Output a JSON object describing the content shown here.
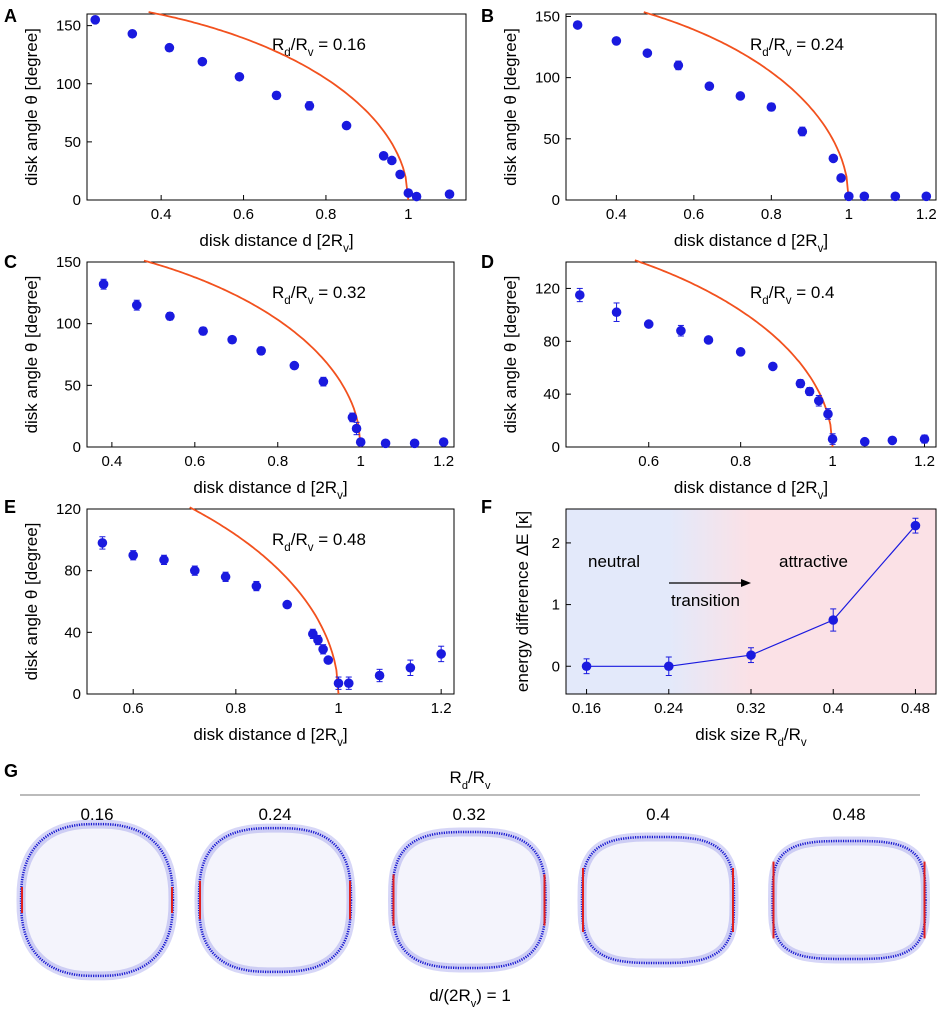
{
  "colors": {
    "marker": "#1a1adf",
    "fit": "#f2511e",
    "membrane": "#1a1ad0",
    "disk": "#e02020",
    "region_neutral": "#e3e9fa",
    "region_attractive": "#fbe1e6"
  },
  "panel_labels": {
    "A": "A",
    "B": "B",
    "C": "C",
    "D": "D",
    "E": "E",
    "F": "F",
    "G": "G"
  },
  "axis_labels": {
    "theta_y": "disk angle θ [degree]",
    "d_x": "disk distance d [2Rv]",
    "f_y": "energy difference ΔE [κ]",
    "f_x": "disk size Rd/Rv"
  },
  "chart_data": [
    {
      "id": "A",
      "type": "scatter",
      "annotation": "Rd/Rv = 0.16",
      "xlabel": "disk distance d [2Rv]",
      "ylabel": "disk angle θ [degree]",
      "xlim": [
        0.22,
        1.14
      ],
      "ylim": [
        0,
        160
      ],
      "xticks": [
        "0.4",
        "0.6",
        "0.8",
        "1"
      ],
      "yticks": [
        "0",
        "50",
        "100",
        "150"
      ],
      "points": [
        [
          0.24,
          155,
          1.5
        ],
        [
          0.33,
          143,
          2.5
        ],
        [
          0.42,
          131,
          2
        ],
        [
          0.5,
          119,
          2
        ],
        [
          0.59,
          106,
          2
        ],
        [
          0.68,
          90,
          3
        ],
        [
          0.76,
          81,
          3.5
        ],
        [
          0.85,
          64,
          2
        ],
        [
          0.94,
          38,
          2.5
        ],
        [
          0.96,
          34,
          2
        ],
        [
          0.98,
          22,
          2
        ],
        [
          1.0,
          6,
          1.5
        ],
        [
          1.02,
          3,
          1
        ],
        [
          1.1,
          5,
          1
        ]
      ],
      "fit": {
        "theta0": 174,
        "d0": 1.0,
        "x_start": 0.22
      }
    },
    {
      "id": "B",
      "type": "scatter",
      "annotation": "Rd/Rv = 0.24",
      "xlabel": "disk distance d [2Rv]",
      "ylabel": "disk angle θ [degree]",
      "xlim": [
        0.27,
        1.225
      ],
      "ylim": [
        0,
        152
      ],
      "xticks": [
        "0.4",
        "0.6",
        "0.8",
        "1",
        "1.2"
      ],
      "yticks": [
        "0",
        "50",
        "100",
        "150"
      ],
      "points": [
        [
          0.3,
          143,
          2
        ],
        [
          0.4,
          130,
          2
        ],
        [
          0.48,
          120,
          2
        ],
        [
          0.56,
          110,
          3.5
        ],
        [
          0.64,
          93,
          2
        ],
        [
          0.72,
          85,
          2.5
        ],
        [
          0.8,
          76,
          3
        ],
        [
          0.88,
          56,
          3.5
        ],
        [
          0.96,
          34,
          2
        ],
        [
          0.98,
          18,
          2
        ],
        [
          1.0,
          3,
          1
        ],
        [
          1.04,
          3,
          1
        ],
        [
          1.12,
          3,
          1
        ],
        [
          1.2,
          3,
          1
        ]
      ],
      "fit": {
        "theta0": 174,
        "d0": 1.0,
        "x_start": 0.27
      }
    },
    {
      "id": "C",
      "type": "scatter",
      "annotation": "Rd/Rv = 0.32",
      "xlabel": "disk distance d [2Rv]",
      "ylabel": "disk angle θ [degree]",
      "xlim": [
        0.34,
        1.225
      ],
      "ylim": [
        0,
        150
      ],
      "xticks": [
        "0.4",
        "0.6",
        "0.8",
        "1",
        "1.2"
      ],
      "yticks": [
        "0",
        "50",
        "100",
        "150"
      ],
      "points": [
        [
          0.38,
          132,
          4
        ],
        [
          0.46,
          115,
          4
        ],
        [
          0.54,
          106,
          3
        ],
        [
          0.62,
          94,
          3
        ],
        [
          0.69,
          87,
          2
        ],
        [
          0.76,
          78,
          3
        ],
        [
          0.84,
          66,
          2
        ],
        [
          0.91,
          53,
          3.5
        ],
        [
          0.98,
          24,
          3.5
        ],
        [
          0.99,
          15,
          5
        ],
        [
          1.0,
          4,
          2
        ],
        [
          1.06,
          3,
          1
        ],
        [
          1.13,
          3,
          1
        ],
        [
          1.2,
          4,
          1
        ]
      ],
      "fit": {
        "theta0": 172,
        "d0": 1.0,
        "x_start": 0.34
      }
    },
    {
      "id": "D",
      "type": "scatter",
      "annotation": "Rd/Rv = 0.4",
      "xlabel": "disk distance d [2Rv]",
      "ylabel": "disk angle θ [degree]",
      "xlim": [
        0.42,
        1.225
      ],
      "ylim": [
        0,
        140
      ],
      "xticks": [
        "0.6",
        "0.8",
        "1",
        "1.2"
      ],
      "yticks": [
        "0",
        "40",
        "80",
        "120"
      ],
      "points": [
        [
          0.45,
          115,
          5
        ],
        [
          0.53,
          102,
          7
        ],
        [
          0.6,
          93,
          2
        ],
        [
          0.67,
          88,
          4
        ],
        [
          0.73,
          81,
          2
        ],
        [
          0.8,
          72,
          2
        ],
        [
          0.87,
          61,
          2
        ],
        [
          0.93,
          48,
          3
        ],
        [
          0.95,
          42,
          3
        ],
        [
          0.97,
          35,
          4
        ],
        [
          0.99,
          25,
          4
        ],
        [
          1.0,
          6,
          4
        ],
        [
          1.07,
          4,
          1
        ],
        [
          1.13,
          5,
          1
        ],
        [
          1.2,
          6,
          3
        ]
      ],
      "fit": {
        "theta0": 172,
        "d0": 1.0,
        "x_start": 0.42
      }
    },
    {
      "id": "E",
      "type": "scatter",
      "annotation": "Rd/Rv = 0.48",
      "xlabel": "disk distance d [2Rv]",
      "ylabel": "disk angle θ [degree]",
      "xlim": [
        0.51,
        1.225
      ],
      "ylim": [
        0,
        120
      ],
      "xticks": [
        "0.6",
        "0.8",
        "1",
        "1.2"
      ],
      "yticks": [
        "0",
        "40",
        "80",
        "120"
      ],
      "points": [
        [
          0.54,
          98,
          4
        ],
        [
          0.6,
          90,
          3
        ],
        [
          0.66,
          87,
          3
        ],
        [
          0.72,
          80,
          3
        ],
        [
          0.78,
          76,
          3
        ],
        [
          0.84,
          70,
          3
        ],
        [
          0.9,
          58,
          2
        ],
        [
          0.95,
          39,
          3
        ],
        [
          0.96,
          35,
          3
        ],
        [
          0.97,
          29,
          3
        ],
        [
          0.98,
          22,
          2
        ],
        [
          1.0,
          7,
          4
        ],
        [
          1.02,
          7,
          4
        ],
        [
          1.08,
          12,
          4
        ],
        [
          1.14,
          17,
          5
        ],
        [
          1.2,
          26,
          5
        ]
      ],
      "fit": {
        "theta0": 172,
        "d0": 1.0,
        "x_start": 0.51
      }
    },
    {
      "id": "F",
      "type": "line",
      "xlabel": "disk size Rd/Rv",
      "ylabel": "energy difference ΔE [κ]",
      "categories": [
        "0.16",
        "0.24",
        "0.32",
        "0.4",
        "0.48"
      ],
      "x": [
        0.16,
        0.24,
        0.32,
        0.4,
        0.48
      ],
      "values": [
        0.0,
        0.0,
        0.18,
        0.75,
        2.28
      ],
      "errors": [
        0.12,
        0.15,
        0.12,
        0.18,
        0.12
      ],
      "xlim": [
        0.14,
        0.5
      ],
      "ylim": [
        -0.45,
        2.55
      ],
      "yticks": [
        "0",
        "1",
        "2"
      ],
      "regions": {
        "neutral_label": "neutral",
        "attractive_label": "attractive",
        "transition_label": "transition"
      }
    }
  ],
  "panel_g": {
    "header": "Rd/Rv",
    "footer": "d/(2Rv) = 1",
    "shapes": [
      {
        "label": "0.16",
        "ratio": 0.16
      },
      {
        "label": "0.24",
        "ratio": 0.24
      },
      {
        "label": "0.32",
        "ratio": 0.32
      },
      {
        "label": "0.4",
        "ratio": 0.4
      },
      {
        "label": "0.48",
        "ratio": 0.48
      }
    ]
  }
}
